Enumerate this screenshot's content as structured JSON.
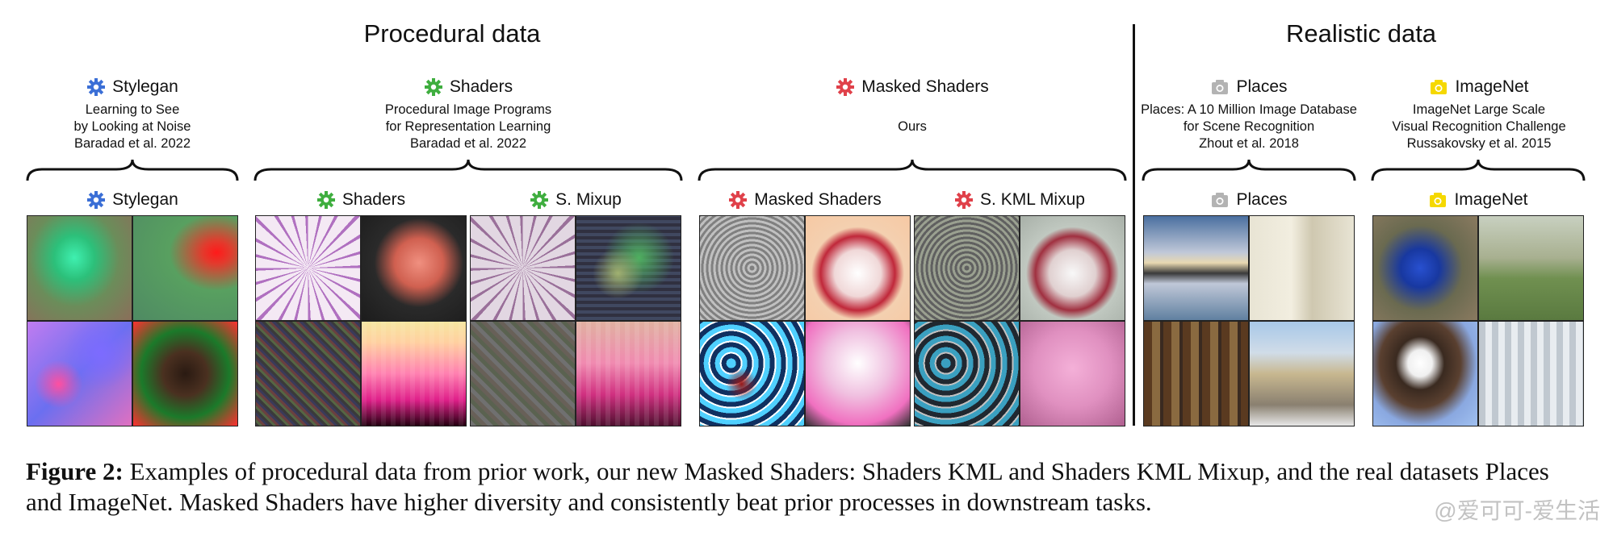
{
  "headings": {
    "procedural": "Procedural data",
    "realistic": "Realistic data"
  },
  "groups": {
    "stylegan": {
      "title": "Stylegan",
      "lines": [
        "Learning to See",
        "by Looking at Noise",
        "Baradad et al. 2022"
      ]
    },
    "shaders": {
      "title": "Shaders",
      "lines": [
        "Procedural Image Programs",
        "for Representation Learning",
        "Baradad et al. 2022"
      ]
    },
    "masked": {
      "title": "Masked Shaders",
      "lines": [
        "Ours"
      ]
    },
    "places": {
      "title": "Places",
      "lines": [
        "Places: A 10 Million Image Database",
        "for Scene Recognition",
        "Zhout et al. 2018"
      ]
    },
    "imagenet": {
      "title": "ImageNet",
      "lines": [
        "ImageNet Large Scale",
        "Visual Recognition Challenge",
        "Russakovsky et al. 2015"
      ]
    }
  },
  "panels": {
    "stylegan": "Stylegan",
    "shaders": "Shaders",
    "s_mixup": "S. Mixup",
    "masked_shaders": "Masked Shaders",
    "s_kml_mixup": "S. KML Mixup",
    "places": "Places",
    "imagenet": "ImageNet"
  },
  "icons": {
    "stylegan": {
      "name": "gear-icon",
      "color": "#3b6fd6"
    },
    "shaders": {
      "name": "gear-icon",
      "color": "#3fae3f"
    },
    "masked": {
      "name": "gear-icon",
      "color": "#e0414a"
    },
    "places": {
      "name": "camera-icon",
      "color": "#b3b3b3"
    },
    "imagenet": {
      "name": "camera-icon",
      "color": "#f5d800"
    }
  },
  "caption": {
    "label": "Figure 2:",
    "text": " Examples of procedural data from prior work, our new Masked Shaders: Shaders KML and Shaders KML Mixup, and the real datasets Places and ImageNet. Masked Shaders have higher diversity and consistently beat prior processes in downstream tasks."
  },
  "watermark": "@爱可可-爱生活"
}
